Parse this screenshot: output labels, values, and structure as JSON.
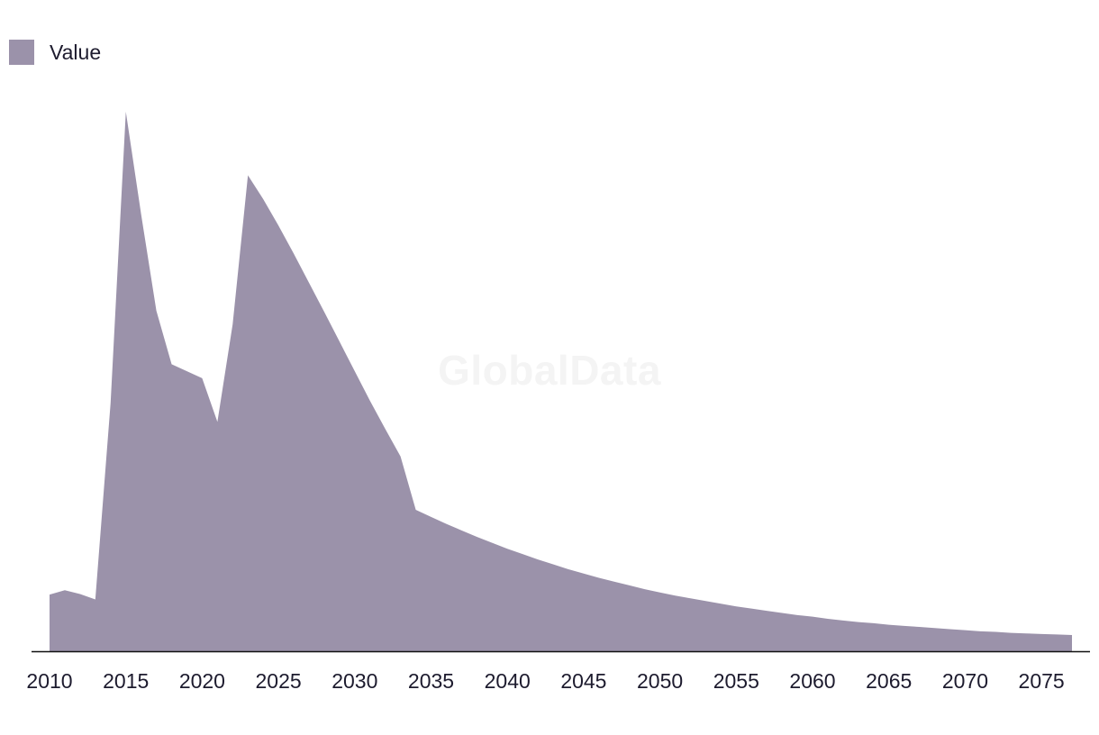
{
  "colors": {
    "series": "#9b92aa",
    "axis": "#111111",
    "text": "#1d1b2e",
    "watermark": "#f4f4f4"
  },
  "watermark": "GlobalData",
  "chart_data": {
    "type": "area",
    "title": "",
    "xlabel": "",
    "ylabel": "",
    "grid": false,
    "legend_position": "top-left",
    "xlim": [
      2010,
      2077
    ],
    "ylim": [
      0,
      100
    ],
    "x_ticks": [
      2010,
      2015,
      2020,
      2025,
      2030,
      2035,
      2040,
      2045,
      2050,
      2055,
      2060,
      2065,
      2070,
      2075
    ],
    "series": [
      {
        "name": "Value",
        "x": [
          2010,
          2011,
          2012,
          2013,
          2014,
          2015,
          2016,
          2017,
          2018,
          2019,
          2020,
          2021,
          2022,
          2023,
          2024,
          2025,
          2026,
          2027,
          2028,
          2029,
          2030,
          2031,
          2032,
          2033,
          2034,
          2035,
          2036,
          2037,
          2038,
          2039,
          2040,
          2041,
          2042,
          2043,
          2044,
          2045,
          2046,
          2047,
          2048,
          2049,
          2050,
          2051,
          2052,
          2053,
          2054,
          2055,
          2056,
          2057,
          2058,
          2059,
          2060,
          2061,
          2062,
          2063,
          2064,
          2065,
          2066,
          2067,
          2068,
          2069,
          2070,
          2071,
          2072,
          2073,
          2074,
          2075,
          2076,
          2077
        ],
        "values": [
          10.5,
          11.3,
          10.6,
          9.6,
          46,
          100,
          81,
          63.1,
          53.2,
          51.9,
          50.6,
          42.5,
          60.6,
          88.2,
          83.8,
          78.9,
          73.7,
          68.3,
          62.9,
          57.4,
          51.9,
          46.4,
          41.2,
          36.1,
          26.2,
          24.9,
          23.6,
          22.4,
          21.2,
          20.1,
          19.0,
          18.0,
          17.0,
          16.1,
          15.2,
          14.4,
          13.6,
          12.9,
          12.2,
          11.5,
          10.9,
          10.3,
          9.8,
          9.3,
          8.8,
          8.3,
          7.9,
          7.5,
          7.1,
          6.7,
          6.4,
          6.0,
          5.7,
          5.4,
          5.2,
          4.9,
          4.7,
          4.5,
          4.3,
          4.1,
          3.9,
          3.7,
          3.6,
          3.4,
          3.3,
          3.2,
          3.1,
          3.0
        ]
      }
    ]
  }
}
